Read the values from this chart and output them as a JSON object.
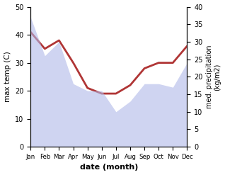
{
  "months": [
    "Jan",
    "Feb",
    "Mar",
    "Apr",
    "May",
    "Jun",
    "Jul",
    "Aug",
    "Sep",
    "Oct",
    "Nov",
    "Dec"
  ],
  "max_temp": [
    41,
    35,
    38,
    30,
    21,
    19,
    19,
    22,
    28,
    30,
    30,
    36
  ],
  "precipitation": [
    37,
    26,
    30,
    18,
    16,
    16,
    10,
    13,
    18,
    18,
    17,
    24
  ],
  "temp_color": "#b03535",
  "precip_color": "#b0b8e8",
  "precip_alpha": 0.6,
  "temp_linewidth": 2.0,
  "ylim_left": [
    0,
    50
  ],
  "ylim_right": [
    0,
    40
  ],
  "xlabel": "date (month)",
  "ylabel_left": "max temp (C)",
  "ylabel_right": "med. precipitation\n(kg/m2)",
  "bg_color": "#ffffff"
}
